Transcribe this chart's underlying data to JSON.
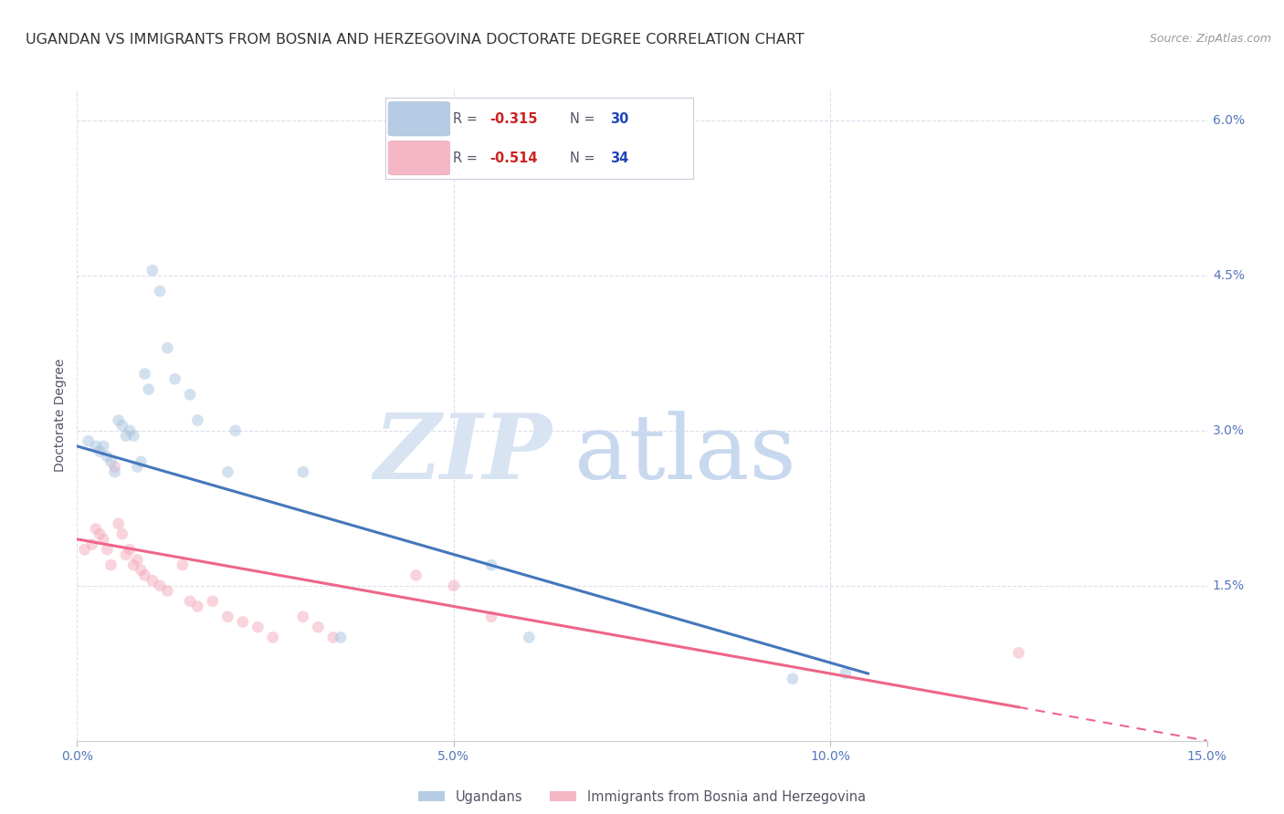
{
  "title": "UGANDAN VS IMMIGRANTS FROM BOSNIA AND HERZEGOVINA DOCTORATE DEGREE CORRELATION CHART",
  "source": "Source: ZipAtlas.com",
  "ylabel": "Doctorate Degree",
  "right_ytick_labels": [
    "6.0%",
    "4.5%",
    "3.0%",
    "1.5%"
  ],
  "right_ytick_values": [
    6.0,
    4.5,
    3.0,
    1.5
  ],
  "xlim": [
    0.0,
    15.0
  ],
  "ylim": [
    0.0,
    6.3
  ],
  "legend1_R": "-0.315",
  "legend1_N": "30",
  "legend2_R": "-0.514",
  "legend2_N": "34",
  "blue_color": "#A8C4E0",
  "pink_color": "#F4AABB",
  "blue_line_color": "#4477BB",
  "pink_line_color": "#EE6688",
  "watermark_zip": "ZIP",
  "watermark_atlas": "atlas",
  "watermark_color_zip": "#D8E4F2",
  "watermark_color_atlas": "#C8D8EE",
  "blue_scatter_x": [
    0.15,
    0.25,
    0.3,
    0.35,
    0.4,
    0.45,
    0.5,
    0.55,
    0.6,
    0.65,
    0.7,
    0.75,
    0.8,
    0.85,
    0.9,
    0.95,
    1.0,
    1.1,
    1.2,
    1.3,
    1.5,
    1.6,
    2.0,
    2.1,
    3.0,
    3.5,
    5.5,
    6.0,
    9.5,
    10.2
  ],
  "blue_scatter_y": [
    2.9,
    2.85,
    2.8,
    2.85,
    2.75,
    2.7,
    2.6,
    3.1,
    3.05,
    2.95,
    3.0,
    2.95,
    2.65,
    2.7,
    3.55,
    3.4,
    4.55,
    4.35,
    3.8,
    3.5,
    3.35,
    3.1,
    2.6,
    3.0,
    2.6,
    1.0,
    1.7,
    1.0,
    0.6,
    0.65
  ],
  "pink_scatter_x": [
    0.1,
    0.2,
    0.25,
    0.3,
    0.35,
    0.4,
    0.45,
    0.5,
    0.55,
    0.6,
    0.65,
    0.7,
    0.75,
    0.8,
    0.85,
    0.9,
    1.0,
    1.1,
    1.2,
    1.4,
    1.5,
    1.6,
    1.8,
    2.0,
    2.2,
    2.4,
    2.6,
    3.0,
    3.2,
    3.4,
    4.5,
    5.0,
    5.5,
    12.5
  ],
  "pink_scatter_y": [
    1.85,
    1.9,
    2.05,
    2.0,
    1.95,
    1.85,
    1.7,
    2.65,
    2.1,
    2.0,
    1.8,
    1.85,
    1.7,
    1.75,
    1.65,
    1.6,
    1.55,
    1.5,
    1.45,
    1.7,
    1.35,
    1.3,
    1.35,
    1.2,
    1.15,
    1.1,
    1.0,
    1.2,
    1.1,
    1.0,
    1.6,
    1.5,
    1.2,
    0.85
  ],
  "blue_line_x_start": 0.0,
  "blue_line_y_start": 2.85,
  "blue_line_x_end": 10.5,
  "blue_line_y_end": 0.65,
  "pink_line_x_start": 0.0,
  "pink_line_y_start": 1.95,
  "pink_line_x_end": 15.0,
  "pink_line_y_end": 0.0,
  "pink_solid_x_end": 12.5,
  "background_color": "#FFFFFF",
  "grid_color": "#DDDDEE",
  "title_fontsize": 11.5,
  "axis_label_fontsize": 10,
  "tick_fontsize": 10,
  "scatter_size": 85,
  "scatter_alpha": 0.5,
  "legend_R_color": "#CC2222",
  "legend_N_color": "#2244BB",
  "legend_text_color": "#555566"
}
